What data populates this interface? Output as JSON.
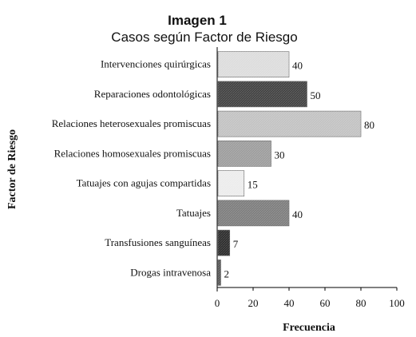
{
  "chart_data": {
    "type": "bar",
    "orientation": "horizontal",
    "title": "Imagen 1",
    "subtitle": "Casos según Factor de Riesgo",
    "xlabel": "Frecuencia",
    "ylabel": "Factor de Riesgo",
    "xlim": [
      0,
      100
    ],
    "xticks": [
      "0",
      "20",
      "40",
      "60",
      "80",
      "100"
    ],
    "grid": false,
    "legend": "none",
    "categories": [
      "Intervenciones quirúrgicas",
      "Reparaciones odontológicas",
      "Relaciones heterosexuales promiscuas",
      "Relaciones homosexuales promiscuas",
      "Tatuajes con agujas compartidas",
      "Tatuajes",
      "Transfusiones sanguíneas",
      "Drogas intravenosa"
    ],
    "values": [
      40,
      50,
      80,
      30,
      15,
      40,
      7,
      2
    ],
    "value_labels": [
      "40",
      "50",
      "80",
      "30",
      "15",
      "40",
      "7",
      "2"
    ],
    "bar_colors": [
      "#dcdcdc",
      "#404040",
      "#c2c2c2",
      "#9c9c9c",
      "#ececec",
      "#7c7c7c",
      "#2a2a2a",
      "#555555"
    ]
  }
}
